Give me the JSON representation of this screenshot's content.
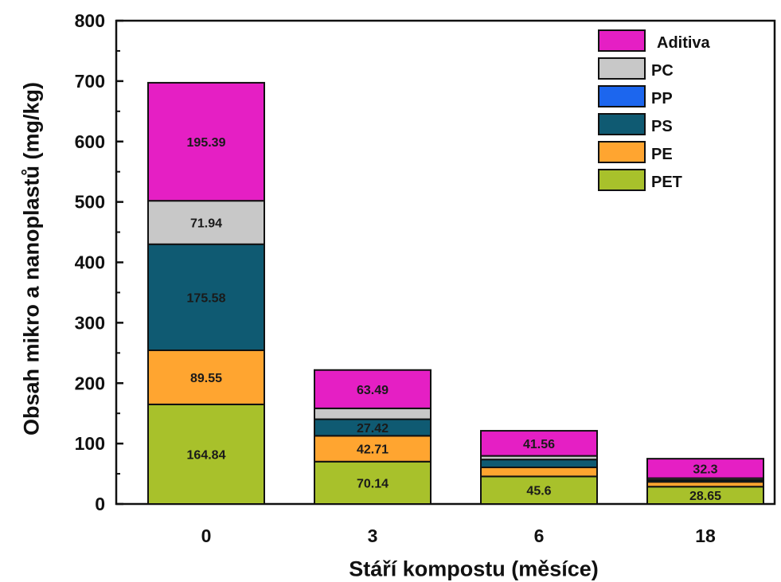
{
  "chart_data": {
    "type": "bar",
    "stacked": true,
    "xlabel": "Stáří kompostu (měsíce)",
    "ylabel": "Obsah mikro a nanoplastů (mg/kg)",
    "ylim": [
      0,
      800
    ],
    "yticks": [
      0,
      100,
      200,
      300,
      400,
      500,
      600,
      700,
      800
    ],
    "categories": [
      "0",
      "3",
      "6",
      "18"
    ],
    "series": [
      {
        "name": "PET",
        "color": "#a8c12b",
        "values": [
          164.84,
          70.14,
          45.6,
          28.65
        ],
        "labels": [
          "164.84",
          "70.14",
          "45.6",
          "28.65"
        ]
      },
      {
        "name": "PE",
        "color": "#ffa530",
        "values": [
          89.55,
          42.71,
          15,
          8
        ],
        "labels": [
          "89.55",
          "42.71",
          "",
          ""
        ]
      },
      {
        "name": "PS",
        "color": "#0f5a72",
        "values": [
          175.58,
          27.42,
          13,
          3
        ],
        "labels": [
          "175.58",
          "27.42",
          "",
          ""
        ]
      },
      {
        "name": "PP",
        "color": "#1c66ee",
        "values": [
          0,
          0,
          0,
          0
        ],
        "labels": [
          "",
          "",
          "",
          ""
        ]
      },
      {
        "name": "PC",
        "color": "#c8c8c8",
        "values": [
          71.94,
          18,
          6,
          3
        ],
        "labels": [
          "71.94",
          "",
          "",
          ""
        ]
      },
      {
        "name": "Aditiva",
        "color": "#e51fc4",
        "values": [
          195.39,
          63.49,
          41.56,
          32.3
        ],
        "labels": [
          "195.39",
          "63.49",
          "41.56",
          "32.3"
        ]
      }
    ],
    "legend": {
      "position": "top-right",
      "order": [
        "Aditiva",
        "PC",
        "PP",
        "PS",
        "PE",
        "PET"
      ]
    },
    "grid": false
  }
}
